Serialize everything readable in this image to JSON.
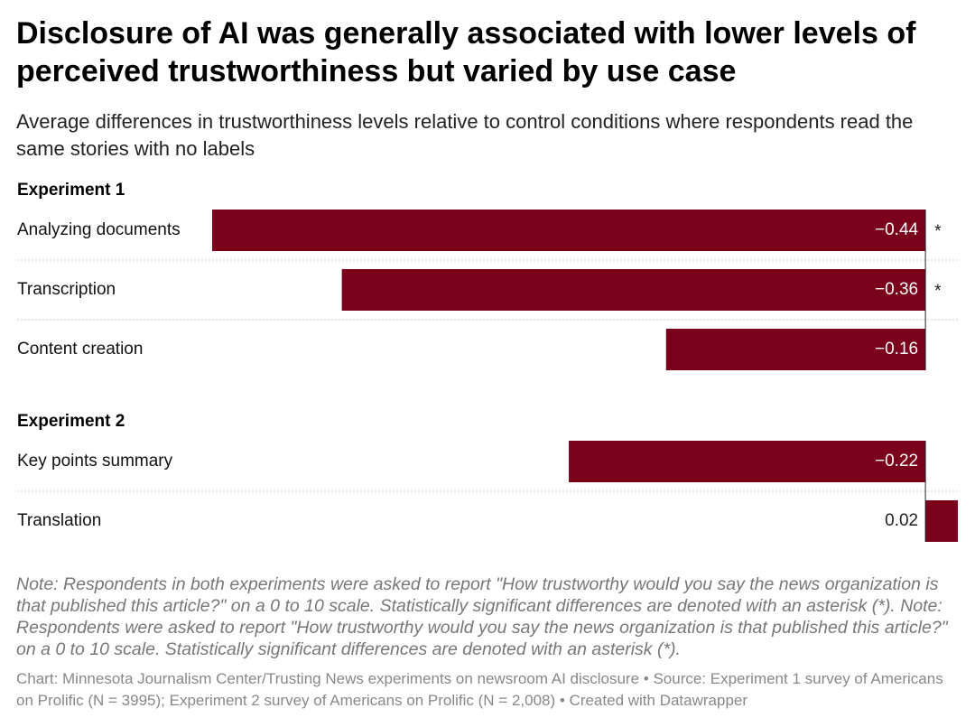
{
  "chart_data": {
    "type": "bar",
    "title": "Disclosure of AI was generally associated with lower levels of perceived trustworthiness but varied by use case",
    "subtitle": "Average differences in trustworthiness levels relative to control conditions where respondents read the same stories with no labels",
    "color": "#7a001c",
    "xlim": [
      -0.44,
      0.02
    ],
    "groups": [
      {
        "name": "Experiment 1",
        "categories": [
          "Analyzing documents",
          "Transcription",
          "Content creation"
        ],
        "values": [
          -0.44,
          -0.36,
          -0.16
        ],
        "value_labels": [
          "−0.44",
          "−0.36",
          "−0.16"
        ],
        "significance": [
          "*",
          "*",
          null
        ]
      },
      {
        "name": "Experiment 2",
        "categories": [
          "Key points summary",
          "Translation"
        ],
        "values": [
          -0.22,
          0.02
        ],
        "value_labels": [
          "−0.22",
          "0.02"
        ],
        "significance": [
          null,
          null
        ]
      }
    ],
    "note": "Note: Respondents in both experiments were asked to report \"How trustworthy would you say the news organization is that published this article?\" on a 0 to 10 scale. Statistically significant differences are denoted with an asterisk (*). Note: Respondents were asked to report \"How trustworthy would you say the news organization is that published this article?\" on a 0 to 10 scale. Statistically significant differences are denoted with an asterisk (*).",
    "source": "Chart: Minnesota Journalism Center/Trusting News experiments on newsroom AI disclosure • Source: Experiment 1 survey of Americans on Prolific (N = 3995); Experiment 2 survey of Americans on Prolific (N = 2,008) • Created with Datawrapper"
  }
}
